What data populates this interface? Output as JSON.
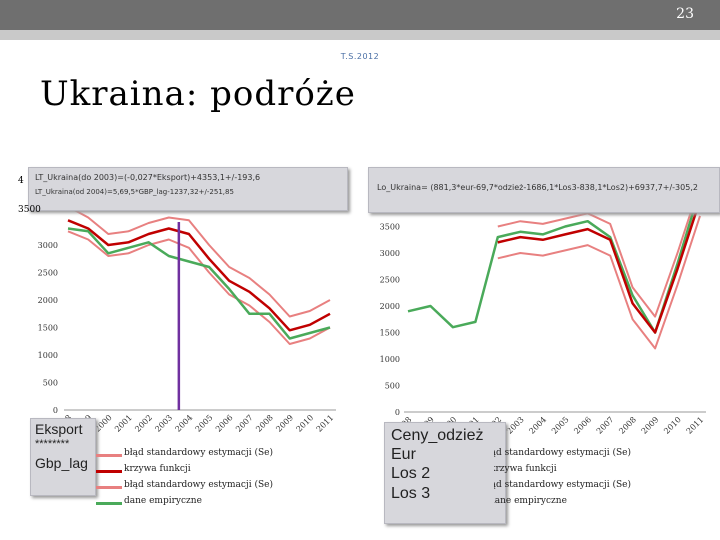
{
  "header": {
    "page_number": "23",
    "date": "T.S.2012"
  },
  "title": "Ukraina: podróże",
  "colors": {
    "red_dark": "#c00000",
    "red_light": "#e88080",
    "green": "#4aaa5a",
    "marker": "#7030a0"
  },
  "left_panel": {
    "equation_line1": "LT_Ukraina(do 2003)=(-0,027*Eksport)+4353,1+/-193,6",
    "equation_line2": "LT_Ukraina(od 2004)=5,69,5*GBP_lag-1237,32+/-251,85",
    "variables": [
      "Eksport",
      "********",
      "Gbp_lag"
    ],
    "axis_top_partial": "4",
    "axis_top_partial_2": "3500"
  },
  "right_panel": {
    "equation": "Lo_Ukraina= (881,3*eur-69,7*odzież-1686,1*Los3-838,1*Los2)+6937,7+/-305,2",
    "variables": [
      "Ceny_odzież",
      "Eur",
      "Los 2",
      "Los 3"
    ]
  },
  "legend": {
    "items": [
      "błąd standardowy estymacji (Se)",
      "krzywa funkcji",
      "błąd standardowy estymacji (Se)",
      "dane empiryczne"
    ]
  },
  "chart_data": [
    {
      "type": "line",
      "x": [
        "1998",
        "1999",
        "2000",
        "2001",
        "2002",
        "2003",
        "2004",
        "2005",
        "2006",
        "2007",
        "2008",
        "2009",
        "2010",
        "2011"
      ],
      "ylim": [
        0,
        4000
      ],
      "yticks": [
        "0",
        "500",
        "1000",
        "1500",
        "2000",
        "2500",
        "3000"
      ],
      "grid": false,
      "series": [
        {
          "role": "upper_se",
          "values": [
            3700,
            3500,
            3200,
            3250,
            3400,
            3500,
            3450,
            3000,
            2600,
            2400,
            2100,
            1700,
            1800,
            2000
          ]
        },
        {
          "role": "function",
          "values": [
            3450,
            3300,
            3000,
            3050,
            3200,
            3300,
            3200,
            2750,
            2350,
            2150,
            1850,
            1450,
            1550,
            1750
          ]
        },
        {
          "role": "lower_se",
          "values": [
            3250,
            3100,
            2800,
            2850,
            3000,
            3100,
            2950,
            2500,
            2100,
            1900,
            1600,
            1200,
            1300,
            1500
          ]
        },
        {
          "role": "empirical",
          "values": [
            3300,
            3250,
            2850,
            2950,
            3050,
            2800,
            2700,
            2600,
            2200,
            1750,
            1750,
            1300,
            1400,
            1500
          ]
        }
      ]
    },
    {
      "type": "line",
      "x": [
        "1998",
        "1999",
        "2000",
        "2001",
        "2002",
        "2003",
        "2004",
        "2005",
        "2006",
        "2007",
        "2008",
        "2009",
        "2010",
        "2011"
      ],
      "ylim": [
        0,
        4000
      ],
      "yticks": [
        "0",
        "500",
        "1000",
        "1500",
        "2000",
        "2500",
        "3000",
        "3500"
      ],
      "grid": false,
      "series": [
        {
          "role": "empirical",
          "values": [
            1900,
            2000,
            1600,
            1700,
            3300,
            3400,
            3350,
            3500,
            3600,
            3300,
            2200,
            1500,
            2800,
            4200
          ]
        },
        {
          "role": "upper_se",
          "values": [
            null,
            null,
            null,
            null,
            3500,
            3600,
            3550,
            3650,
            3750,
            3550,
            2350,
            1800,
            3000,
            4300
          ]
        },
        {
          "role": "function",
          "values": [
            null,
            null,
            null,
            null,
            3200,
            3300,
            3250,
            3350,
            3450,
            3250,
            2050,
            1500,
            2700,
            4000
          ]
        },
        {
          "role": "lower_se",
          "values": [
            null,
            null,
            null,
            null,
            2900,
            3000,
            2950,
            3050,
            3150,
            2950,
            1750,
            1200,
            2400,
            3700
          ]
        }
      ]
    }
  ]
}
